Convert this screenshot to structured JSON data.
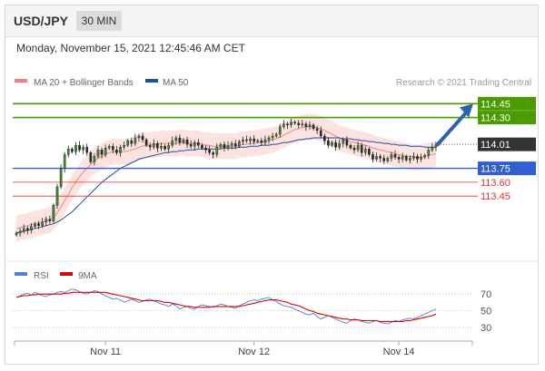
{
  "header": {
    "pair": "USD/JPY",
    "timeframe": "30 MIN"
  },
  "datetime": "Monday, November 15, 2021 12:45:46 AM CET",
  "legend": {
    "items": [
      {
        "label": "MA 20 + Bollinger Bands",
        "color": "#f08080"
      },
      {
        "label": "MA 50",
        "color": "#1f4e9c"
      }
    ],
    "credit": "Research © 2021 Trading Central"
  },
  "rsi_legend": {
    "items": [
      {
        "label": "RSI",
        "color": "#4f7fd6"
      },
      {
        "label": "9MA",
        "color": "#e00000"
      }
    ]
  },
  "chart_data": [
    {
      "type": "candlestick",
      "title": "USD/JPY",
      "timeframe": "30 MIN",
      "ylim": [
        113.0,
        114.62
      ],
      "x_tick_labels": [
        "Nov 11",
        "Nov 12",
        "Nov 14"
      ],
      "current_price": {
        "value": 114.01,
        "label": "114.01",
        "color": "#333333"
      },
      "levels": [
        {
          "value": 114.45,
          "label": "114.45",
          "role": "resistance",
          "color": "#4a9a00",
          "labeled_box": true
        },
        {
          "value": 114.3,
          "label": "114.30",
          "role": "resistance",
          "color": "#4a9a00",
          "labeled_box": true
        },
        {
          "value": 113.75,
          "label": "113.75",
          "role": "pivot",
          "color": "#2f5fd1",
          "labeled_box": true
        },
        {
          "value": 113.6,
          "label": "113.60",
          "role": "support",
          "color": "#e03030",
          "labeled_box": false
        },
        {
          "value": 113.45,
          "label": "113.45",
          "role": "support",
          "color": "#e03030",
          "labeled_box": false
        }
      ],
      "forecast_arrow": {
        "direction": "up",
        "from": 114.01,
        "to": 114.4,
        "color": "#2c63ad"
      },
      "closes": [
        113.05,
        113.07,
        113.1,
        113.08,
        113.12,
        113.15,
        113.13,
        113.17,
        113.2,
        113.18,
        113.35,
        113.55,
        113.75,
        113.9,
        113.96,
        113.93,
        114.0,
        113.95,
        113.98,
        113.92,
        113.82,
        113.88,
        113.95,
        113.9,
        113.97,
        113.99,
        113.95,
        113.92,
        113.98,
        114.0,
        114.05,
        114.02,
        114.08,
        114.1,
        114.06,
        114.0,
        113.98,
        114.02,
        113.97,
        113.99,
        113.96,
        114.0,
        114.05,
        114.08,
        114.03,
        114.06,
        114.01,
        113.99,
        114.03,
        114.0,
        113.97,
        113.95,
        113.92,
        113.9,
        113.98,
        114.01,
        113.97,
        114.0,
        114.02,
        113.99,
        114.04,
        114.06,
        114.05,
        114.07,
        114.04,
        114.05,
        114.03,
        114.06,
        114.08,
        114.1,
        114.12,
        114.2,
        114.23,
        114.22,
        114.25,
        114.24,
        114.22,
        114.23,
        114.2,
        114.22,
        114.18,
        114.16,
        114.1,
        114.05,
        114.0,
        114.03,
        113.98,
        114.02,
        114.06,
        114.0,
        113.97,
        113.95,
        114.0,
        113.92,
        113.96,
        113.9,
        113.85,
        113.88,
        113.86,
        113.83,
        113.86,
        113.9,
        113.87,
        113.85,
        113.88,
        113.84,
        113.86,
        113.88,
        113.85,
        113.87,
        113.89,
        113.95,
        113.98,
        114.01
      ],
      "ma20": [
        113.1,
        113.11,
        113.12,
        113.13,
        113.14,
        113.15,
        113.16,
        113.17,
        113.18,
        113.19,
        113.22,
        113.27,
        113.33,
        113.4,
        113.47,
        113.54,
        113.6,
        113.66,
        113.71,
        113.75,
        113.79,
        113.83,
        113.86,
        113.88,
        113.9,
        113.92,
        113.93,
        113.93,
        113.93,
        113.93,
        113.94,
        113.95,
        113.96,
        113.98,
        113.99,
        114.0,
        114.0,
        114.01,
        114.01,
        114.02,
        114.02,
        114.02,
        114.02,
        114.02,
        114.03,
        114.03,
        114.02,
        114.02,
        114.02,
        114.02,
        114.01,
        114.0,
        114.0,
        113.99,
        113.99,
        113.99,
        113.99,
        113.99,
        113.99,
        113.99,
        114.0,
        114.01,
        114.01,
        114.02,
        114.02,
        114.03,
        114.03,
        114.04,
        114.05,
        114.06,
        114.07,
        114.09,
        114.11,
        114.13,
        114.15,
        114.17,
        114.18,
        114.19,
        114.2,
        114.2,
        114.2,
        114.19,
        114.18,
        114.16,
        114.14,
        114.12,
        114.1,
        114.08,
        114.06,
        114.05,
        114.04,
        114.03,
        114.02,
        114.01,
        114.0,
        113.99,
        113.97,
        113.96,
        113.95,
        113.94,
        113.93,
        113.92,
        113.91,
        113.9,
        113.89,
        113.88,
        113.88,
        113.87,
        113.87,
        113.87,
        113.88,
        113.89,
        113.9,
        113.91
      ],
      "bb_width": 0.14,
      "ma50": [
        113.05,
        113.06,
        113.07,
        113.08,
        113.09,
        113.1,
        113.11,
        113.12,
        113.13,
        113.14,
        113.15,
        113.17,
        113.19,
        113.22,
        113.25,
        113.28,
        113.32,
        113.36,
        113.4,
        113.44,
        113.48,
        113.52,
        113.56,
        113.6,
        113.63,
        113.66,
        113.69,
        113.72,
        113.75,
        113.77,
        113.79,
        113.81,
        113.83,
        113.85,
        113.86,
        113.87,
        113.88,
        113.89,
        113.9,
        113.91,
        113.92,
        113.92,
        113.93,
        113.93,
        113.94,
        113.94,
        113.95,
        113.95,
        113.95,
        113.96,
        113.96,
        113.96,
        113.96,
        113.96,
        113.96,
        113.96,
        113.97,
        113.97,
        113.97,
        113.97,
        113.98,
        113.98,
        113.98,
        113.99,
        113.99,
        113.99,
        114.0,
        114.0,
        114.0,
        114.01,
        114.01,
        114.02,
        114.03,
        114.03,
        114.04,
        114.05,
        114.06,
        114.06,
        114.07,
        114.07,
        114.08,
        114.08,
        114.08,
        114.08,
        114.08,
        114.08,
        114.08,
        114.08,
        114.07,
        114.07,
        114.07,
        114.06,
        114.06,
        114.05,
        114.05,
        114.04,
        114.04,
        114.03,
        114.03,
        114.02,
        114.02,
        114.01,
        114.01,
        114.0,
        114.0,
        114.0,
        113.99,
        113.99,
        113.99,
        113.99,
        113.98,
        113.98,
        113.98,
        113.98
      ]
    },
    {
      "type": "line",
      "title": "RSI",
      "ylim": [
        20,
        80
      ],
      "y_ticks": [
        70,
        50,
        30
      ],
      "series": [
        {
          "name": "RSI",
          "color": "#4f7fd6",
          "values": [
            66,
            68,
            70,
            71,
            69,
            72,
            70,
            68,
            67,
            69,
            70,
            72,
            73,
            72,
            74,
            76,
            75,
            73,
            71,
            70,
            72,
            74,
            73,
            70,
            68,
            66,
            64,
            65,
            63,
            60,
            62,
            64,
            62,
            60,
            61,
            63,
            64,
            62,
            60,
            58,
            57,
            55,
            58,
            56,
            52,
            54,
            55,
            53,
            52,
            55,
            57,
            56,
            55,
            54,
            56,
            58,
            57,
            55,
            54,
            53,
            56,
            58,
            60,
            62,
            63,
            62,
            64,
            65,
            66,
            63,
            61,
            58,
            56,
            55,
            54,
            52,
            50,
            48,
            46,
            45,
            47,
            43,
            40,
            42,
            44,
            42,
            40,
            38,
            36,
            35,
            38,
            40,
            39,
            37,
            36,
            35,
            37,
            38,
            36,
            35,
            34,
            36,
            38,
            37,
            39,
            40,
            41,
            40,
            42,
            44,
            46,
            48,
            50,
            52
          ]
        },
        {
          "name": "9MA",
          "color": "#e00000",
          "values": [
            66,
            67,
            68,
            68,
            69,
            69,
            70,
            70,
            70,
            70,
            70,
            70,
            70,
            71,
            71,
            72,
            72,
            72,
            72,
            72,
            72,
            72,
            72,
            72,
            72,
            71,
            70,
            69,
            68,
            67,
            66,
            65,
            64,
            63,
            62,
            62,
            62,
            62,
            62,
            61,
            60,
            60,
            59,
            58,
            57,
            56,
            55,
            55,
            54,
            54,
            54,
            54,
            54,
            55,
            55,
            55,
            55,
            55,
            55,
            55,
            55,
            56,
            57,
            58,
            59,
            60,
            61,
            62,
            63,
            63,
            63,
            62,
            61,
            60,
            58,
            57,
            56,
            54,
            52,
            50,
            49,
            47,
            46,
            45,
            44,
            43,
            42,
            41,
            40,
            40,
            39,
            39,
            39,
            38,
            38,
            38,
            38,
            38,
            37,
            37,
            37,
            37,
            37,
            37,
            37,
            38,
            38,
            39,
            40,
            41,
            42,
            43,
            44,
            46
          ]
        }
      ]
    }
  ]
}
